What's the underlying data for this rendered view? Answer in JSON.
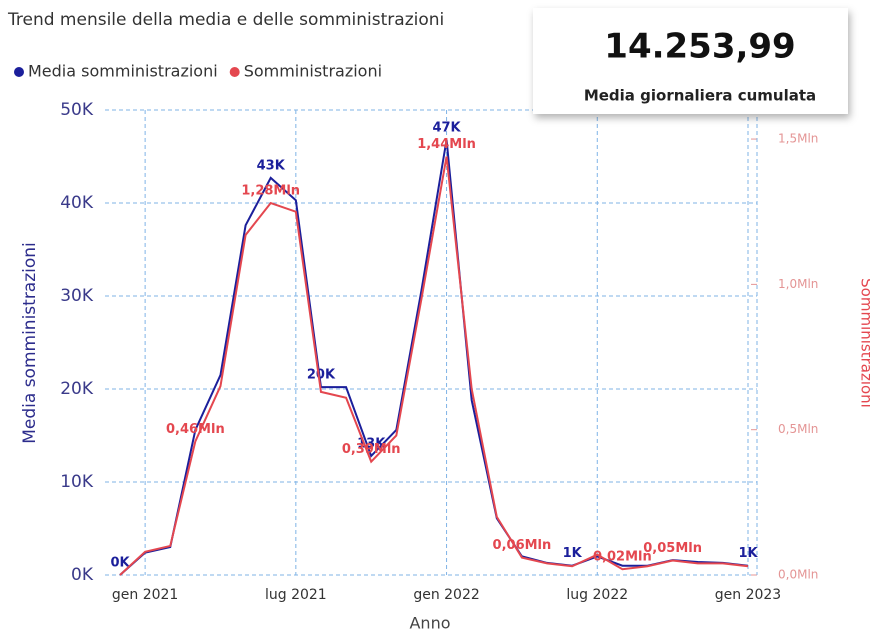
{
  "chart_data": {
    "type": "line",
    "title": "Trend mensile della media e delle somministrazioni",
    "x_label": "Anno",
    "y_label": "Media somministrazioni",
    "y2_label": "Somministrazioni",
    "x": [
      "2020-12",
      "2021-01",
      "2021-02",
      "2021-03",
      "2021-04",
      "2021-05",
      "2021-06",
      "2021-07",
      "2021-08",
      "2021-09",
      "2021-10",
      "2021-11",
      "2021-12",
      "2022-01",
      "2022-02",
      "2022-03",
      "2022-04",
      "2022-05",
      "2022-06",
      "2022-07",
      "2022-08",
      "2022-09",
      "2022-10",
      "2022-11",
      "2022-12",
      "2023-01"
    ],
    "xlim": [
      "2020-12",
      "2023-01"
    ],
    "xticks": [
      {
        "value": "2021-01",
        "label": "gen 2021"
      },
      {
        "value": "2021-07",
        "label": "lug 2021"
      },
      {
        "value": "2022-01",
        "label": "gen 2022"
      },
      {
        "value": "2022-07",
        "label": "lug 2022"
      },
      {
        "value": "2023-01",
        "label": "gen 2023"
      }
    ],
    "ylim": [
      0,
      50000
    ],
    "yticks": [
      {
        "value": 0,
        "label": "0K"
      },
      {
        "value": 10000,
        "label": "10K"
      },
      {
        "value": 20000,
        "label": "20K"
      },
      {
        "value": 30000,
        "label": "30K"
      },
      {
        "value": 40000,
        "label": "40K"
      },
      {
        "value": 50000,
        "label": "50K"
      }
    ],
    "y2lim": [
      0,
      1600000
    ],
    "y2ticks": [
      {
        "value": 0,
        "label": "0,0Mln"
      },
      {
        "value": 500000,
        "label": "0,5Mln"
      },
      {
        "value": 1000000,
        "label": "1,0Mln"
      },
      {
        "value": 1500000,
        "label": "1,5Mln"
      }
    ],
    "grid": true,
    "legend": "top-left",
    "series": [
      {
        "name": "Media somministrazioni",
        "color": "#1b1f9b",
        "values": [
          0,
          2400,
          3000,
          15600,
          21500,
          37600,
          42700,
          40300,
          20200,
          20200,
          12800,
          15600,
          30600,
          46800,
          18800,
          6100,
          2000,
          1300,
          1000,
          2000,
          1000,
          1000,
          1600,
          1400,
          1300,
          1000
        ],
        "value_labels": [
          "0K",
          null,
          null,
          null,
          null,
          null,
          "43K",
          null,
          "20K",
          null,
          "13K",
          null,
          null,
          "47K",
          null,
          null,
          null,
          null,
          "1K",
          null,
          null,
          null,
          null,
          null,
          null,
          "1K"
        ]
      },
      {
        "name": "Somministrazioni",
        "color": "#e4474f",
        "axis": "y2",
        "values": [
          0,
          80000,
          100000,
          460000,
          650000,
          1170000,
          1280000,
          1250000,
          630000,
          610000,
          390000,
          480000,
          950000,
          1440000,
          640000,
          200000,
          60000,
          40000,
          30000,
          70000,
          20000,
          30000,
          50000,
          40000,
          40000,
          30000
        ],
        "value_labels": [
          null,
          null,
          null,
          "0,46Mln",
          null,
          null,
          "1,28Mln",
          null,
          null,
          null,
          "0,39Mln",
          null,
          null,
          "1,44Mln",
          null,
          null,
          "0,06Mln",
          null,
          null,
          null,
          "0,02Mln",
          null,
          "0,05Mln",
          null,
          null,
          null
        ]
      }
    ]
  },
  "card": {
    "value": "14.253,99",
    "label": "Media giornaliera cumulata"
  }
}
